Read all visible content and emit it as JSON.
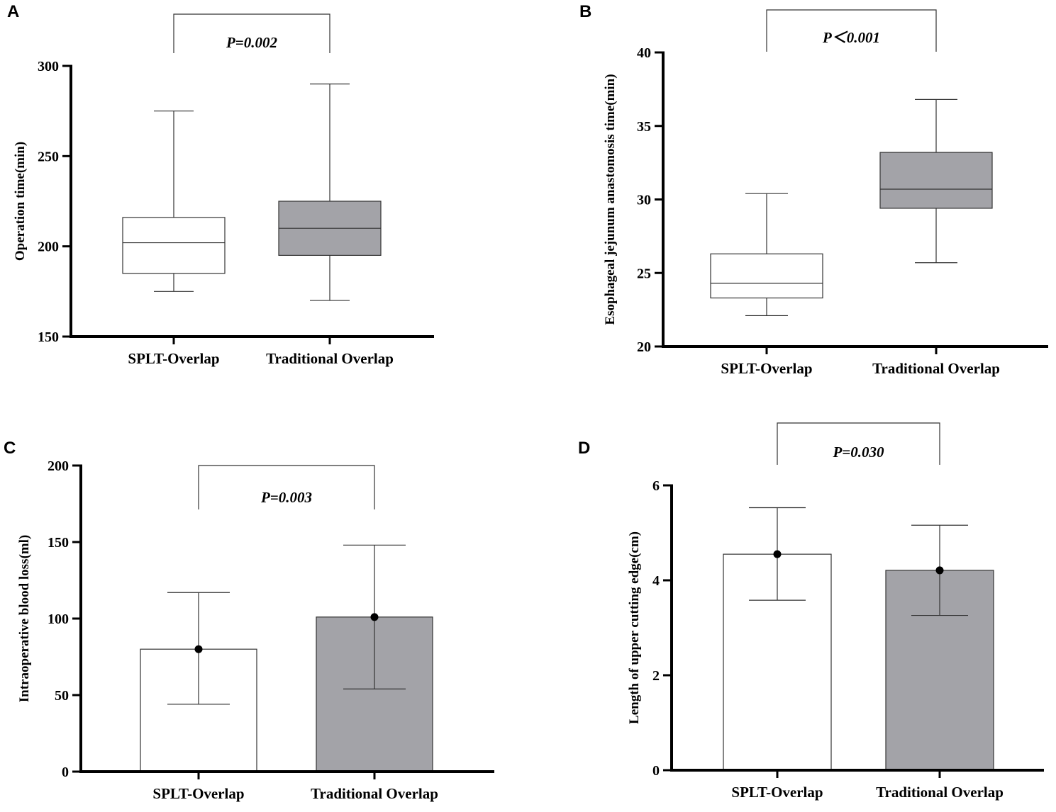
{
  "colors": {
    "fill_a": "#ffffff",
    "fill_b": "#a3a3a8",
    "axis": "#000000",
    "line": "#333333"
  },
  "chart_data": [
    {
      "panel": "A",
      "type": "box",
      "ylabel": "Operation time(min)",
      "ylim": [
        150,
        300
      ],
      "yticks": [
        150,
        200,
        250,
        300
      ],
      "categories": [
        "SPLT-Overlap",
        "Traditional Overlap"
      ],
      "boxes": [
        {
          "min": 175,
          "q1": 185,
          "median": 202,
          "q3": 216,
          "max": 275
        },
        {
          "min": 170,
          "q1": 195,
          "median": 210,
          "q3": 225,
          "max": 290
        }
      ],
      "significance": "P=0.002"
    },
    {
      "panel": "B",
      "type": "box",
      "ylabel": "Esophageal jejunum anastomosis time(min)",
      "ylim": [
        20,
        40
      ],
      "yticks": [
        20,
        25,
        30,
        35,
        40
      ],
      "categories": [
        "SPLT-Overlap",
        "Traditional Overlap"
      ],
      "boxes": [
        {
          "min": 22.1,
          "q1": 23.3,
          "median": 24.3,
          "q3": 26.3,
          "max": 30.4
        },
        {
          "min": 25.7,
          "q1": 29.4,
          "median": 30.7,
          "q3": 33.2,
          "max": 36.8
        }
      ],
      "significance": "P＜0.001"
    },
    {
      "panel": "C",
      "type": "bar",
      "ylabel": "Intraoperative blood loss(ml)",
      "ylim": [
        0,
        200
      ],
      "yticks": [
        0,
        50,
        100,
        150,
        200
      ],
      "categories": [
        "SPLT-Overlap",
        "Traditional Overlap"
      ],
      "values": [
        80,
        101
      ],
      "error_low": [
        44,
        54
      ],
      "error_high": [
        117,
        148
      ],
      "significance": "P=0.003"
    },
    {
      "panel": "D",
      "type": "bar",
      "ylabel": "Length of upper cutting edge(cm)",
      "ylim": [
        0,
        6
      ],
      "yticks": [
        0,
        2,
        4,
        6
      ],
      "categories": [
        "SPLT-Overlap",
        "Traditional Overlap"
      ],
      "values": [
        4.55,
        4.21
      ],
      "error_low": [
        3.58,
        3.26
      ],
      "error_high": [
        5.53,
        5.16
      ],
      "significance": "P=0.030"
    }
  ]
}
